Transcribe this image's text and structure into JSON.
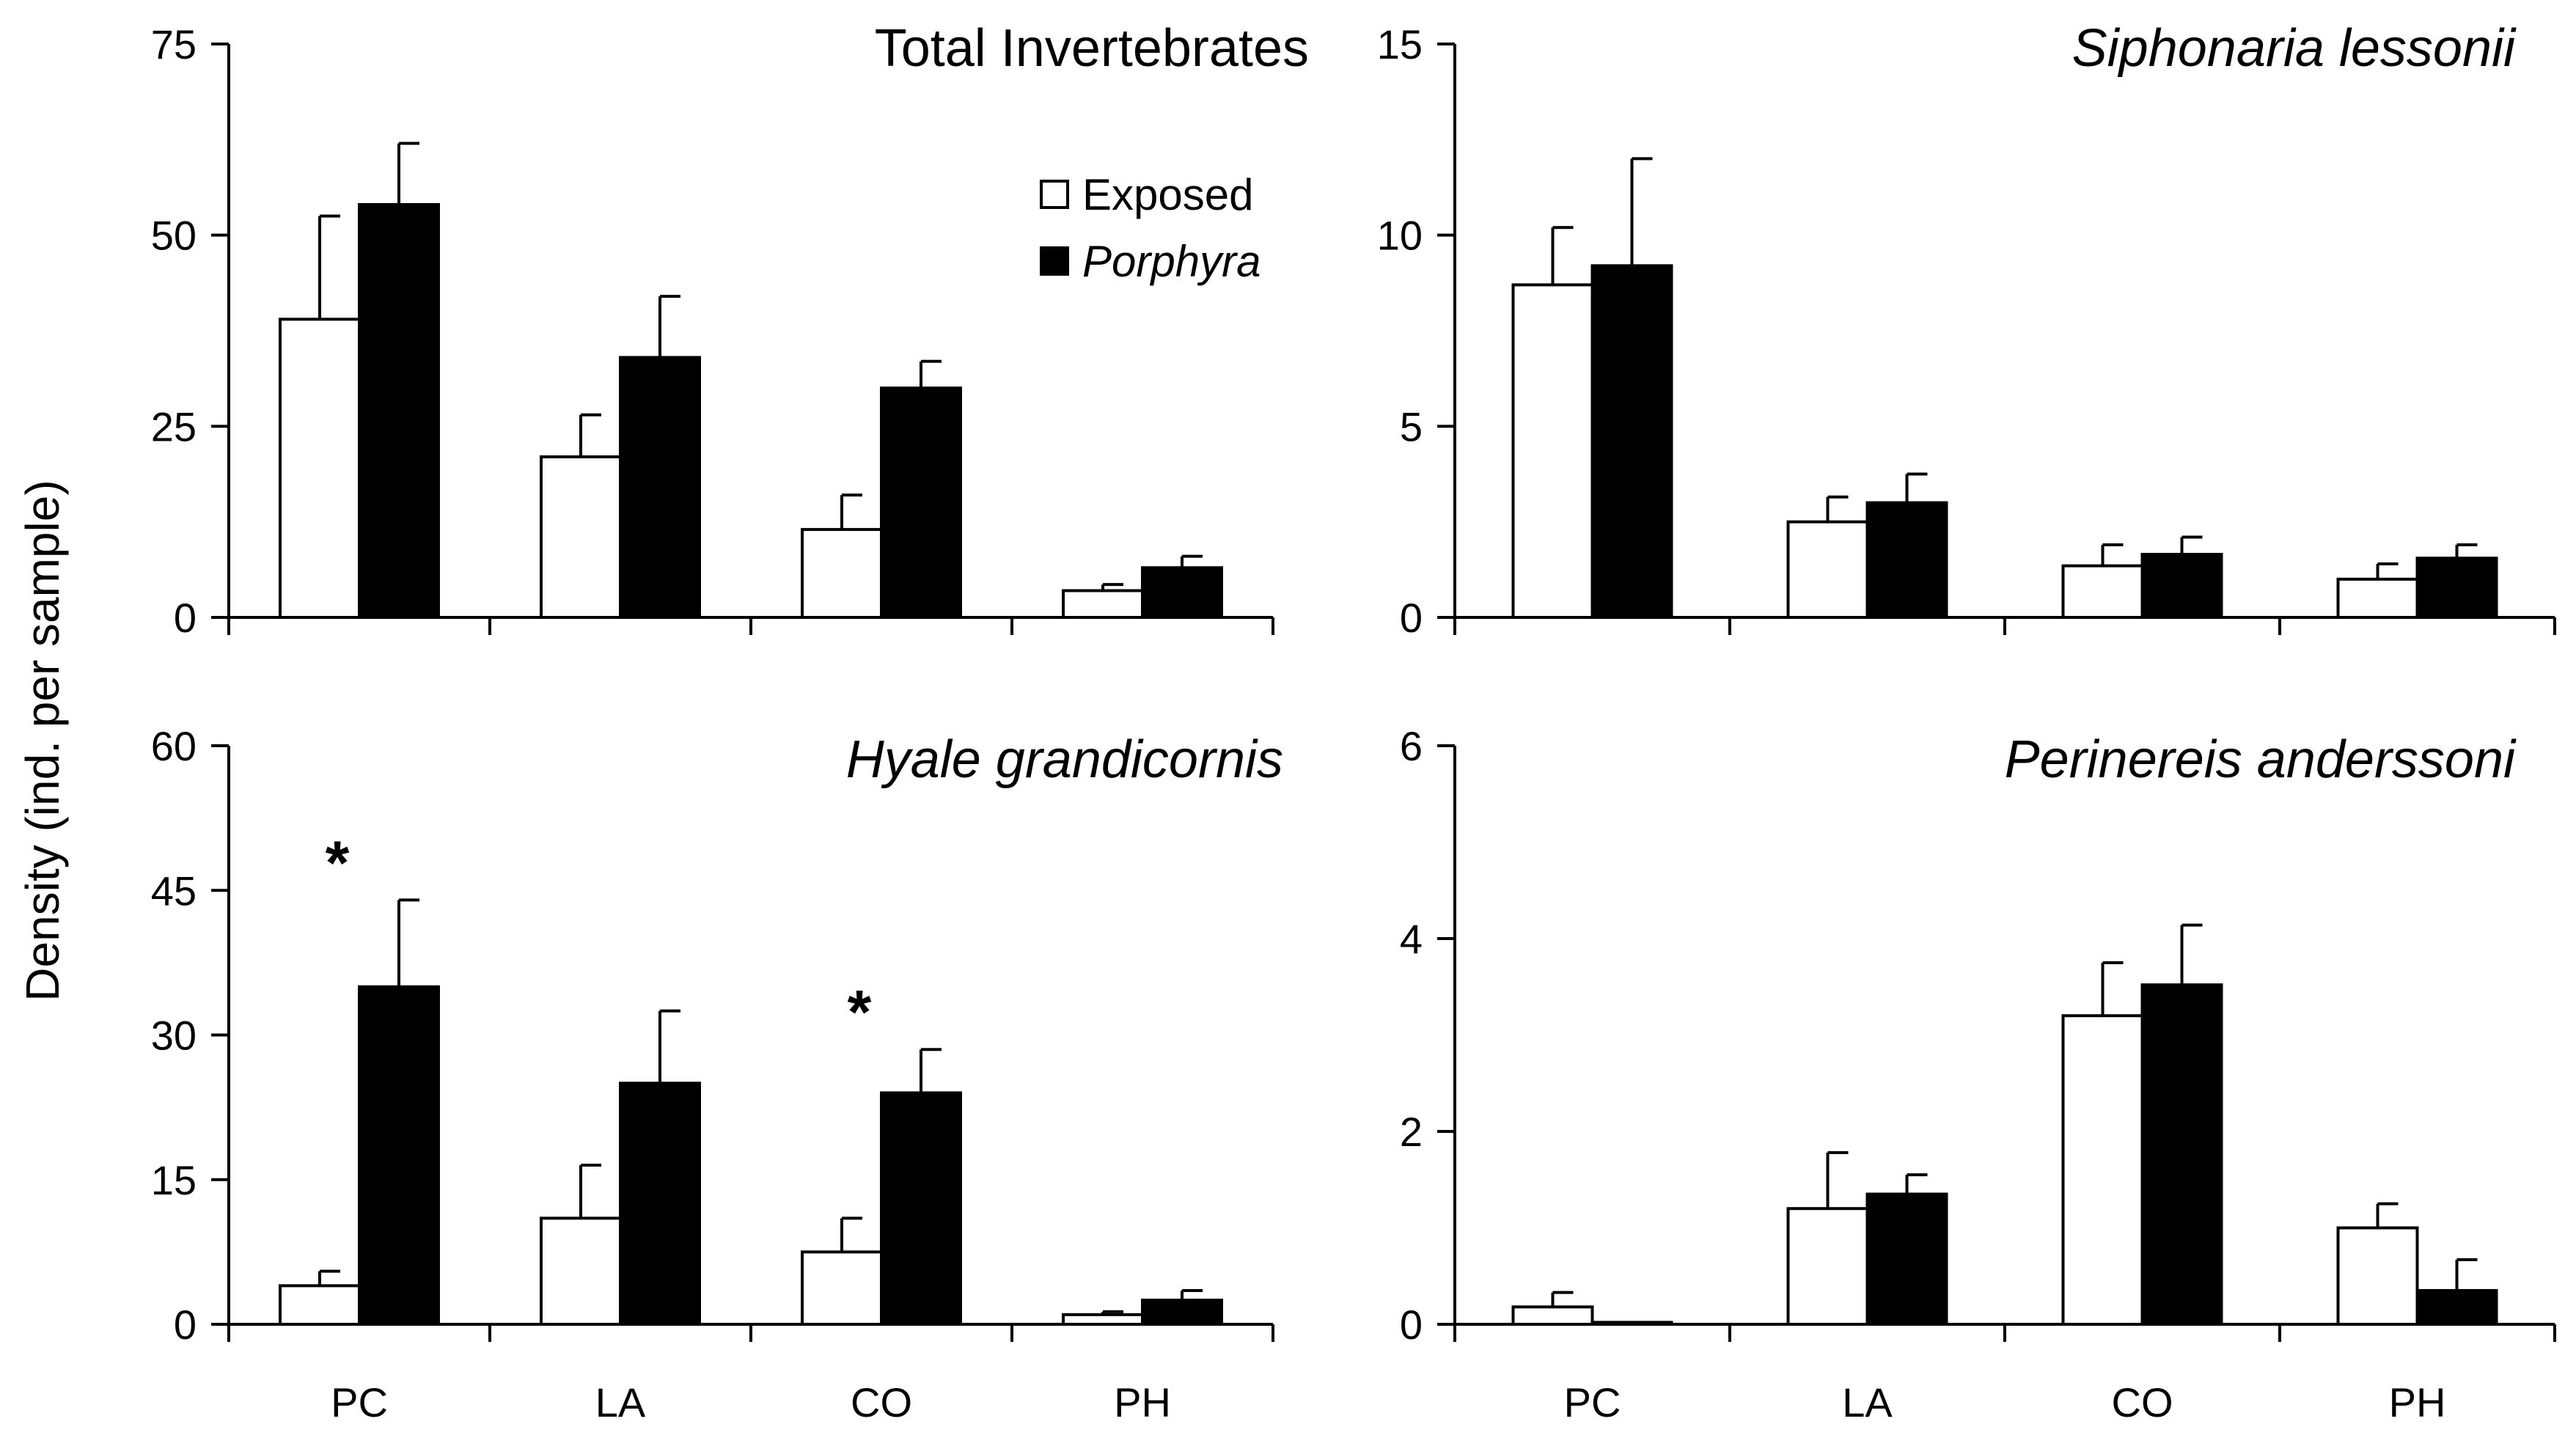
{
  "ylabel": "Density (ind. per sample)",
  "legend": {
    "exposed_label": "Exposed",
    "porphyra_label": "Porphyra"
  },
  "colors": {
    "exposed": "#ffffff",
    "porphyra": "#000000",
    "axis": "#000000"
  },
  "chart_data": [
    {
      "type": "bar",
      "title": "Total Invertebrates",
      "title_italic": false,
      "categories": [
        "PC",
        "LA",
        "CO",
        "PH"
      ],
      "ylim": [
        0,
        75
      ],
      "yticks": [
        "0",
        "25",
        "50",
        "75"
      ],
      "show_legend": true,
      "series": [
        {
          "name": "Exposed",
          "values": [
            39,
            21,
            11.5,
            3.5
          ],
          "errors": [
            13.5,
            5.5,
            4.5,
            0.8
          ]
        },
        {
          "name": "Porphyra",
          "values": [
            54,
            34,
            30,
            6.5
          ],
          "errors": [
            8,
            8,
            3.5,
            1.5
          ]
        }
      ],
      "significance": []
    },
    {
      "type": "bar",
      "title": "Siphonaria lessonii",
      "title_italic": true,
      "categories": [
        "PC",
        "LA",
        "CO",
        "PH"
      ],
      "ylim": [
        0,
        15
      ],
      "yticks": [
        "0",
        "5",
        "10",
        "15"
      ],
      "show_legend": false,
      "series": [
        {
          "name": "Exposed",
          "values": [
            8.7,
            2.5,
            1.35,
            1.0
          ],
          "errors": [
            1.5,
            0.65,
            0.55,
            0.4
          ]
        },
        {
          "name": "Porphyra",
          "values": [
            9.2,
            3.0,
            1.65,
            1.55
          ],
          "errors": [
            2.8,
            0.75,
            0.45,
            0.35
          ]
        }
      ],
      "significance": []
    },
    {
      "type": "bar",
      "title": "Hyale grandicornis",
      "title_italic": true,
      "categories": [
        "PC",
        "LA",
        "CO",
        "PH"
      ],
      "ylim": [
        0,
        60
      ],
      "yticks": [
        "0",
        "15",
        "30",
        "45",
        "60"
      ],
      "show_legend": false,
      "series": [
        {
          "name": "Exposed",
          "values": [
            4,
            11,
            7.5,
            1.0
          ],
          "errors": [
            1.5,
            5.5,
            3.5,
            0.3
          ]
        },
        {
          "name": "Porphyra",
          "values": [
            35,
            25,
            24,
            2.5
          ],
          "errors": [
            9,
            7.5,
            4.5,
            1.0
          ]
        }
      ],
      "significance": [
        {
          "category": "PC",
          "label": "*"
        },
        {
          "category": "CO",
          "label": "*"
        }
      ]
    },
    {
      "type": "bar",
      "title": "Perinereis anderssoni",
      "title_italic": true,
      "categories": [
        "PC",
        "LA",
        "CO",
        "PH"
      ],
      "ylim": [
        0,
        6
      ],
      "yticks": [
        "0",
        "2",
        "4",
        "6"
      ],
      "show_legend": false,
      "series": [
        {
          "name": "Exposed",
          "values": [
            0.18,
            1.2,
            3.2,
            1.0
          ],
          "errors": [
            0.15,
            0.58,
            0.55,
            0.25
          ]
        },
        {
          "name": "Porphyra",
          "values": [
            0.02,
            1.35,
            3.52,
            0.35
          ],
          "errors": [
            0,
            0.2,
            0.62,
            0.32
          ]
        }
      ],
      "significance": []
    }
  ]
}
